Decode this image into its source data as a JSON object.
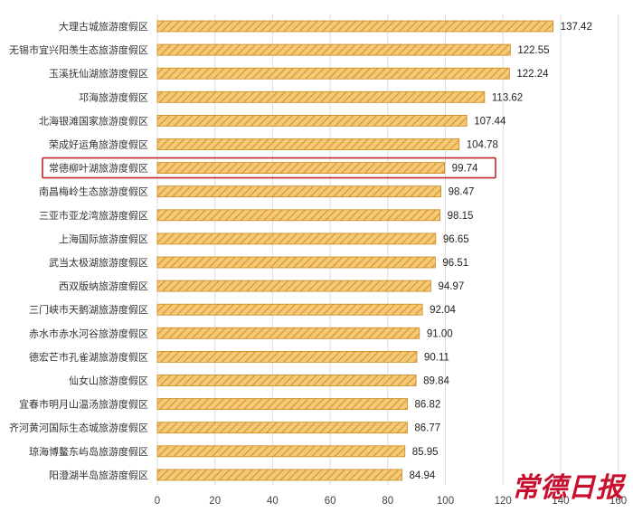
{
  "chart_data": {
    "type": "bar",
    "orientation": "horizontal",
    "categories": [
      "大理古城旅游度假区",
      "无锡市宜兴阳羡生态旅游度假区",
      "玉溪抚仙湖旅游度假区",
      "邛海旅游度假区",
      "北海银滩国家旅游度假区",
      "荣成好运角旅游度假区",
      "常德柳叶湖旅游度假区",
      "南昌梅岭生态旅游度假区",
      "三亚市亚龙湾旅游度假区",
      "上海国际旅游度假区",
      "武当太极湖旅游度假区",
      "西双版纳旅游度假区",
      "三门峡市天鹅湖旅游度假区",
      "赤水市赤水河谷旅游度假区",
      "德宏芒市孔雀湖旅游度假区",
      "仙女山旅游度假区",
      "宜春市明月山温汤旅游度假区",
      "齐河黄河国际生态城旅游度假区",
      "琼海博鳌东屿岛旅游度假区",
      "阳澄湖半岛旅游度假区"
    ],
    "values": [
      137.42,
      122.55,
      122.24,
      113.62,
      107.44,
      104.78,
      99.74,
      98.47,
      98.15,
      96.65,
      96.51,
      94.97,
      92.04,
      91.0,
      90.11,
      89.84,
      86.82,
      86.77,
      85.95,
      84.94
    ],
    "value_labels": [
      "137.42",
      "122.55",
      "122.24",
      "113.62",
      "107.44",
      "104.78",
      "99.74",
      "98.47",
      "98.15",
      "96.65",
      "96.51",
      "94.97",
      "92.04",
      "91.00",
      "90.11",
      "89.84",
      "86.82",
      "86.77",
      "85.95",
      "84.94"
    ],
    "x_ticks": [
      "0",
      "20",
      "40",
      "60",
      "80",
      "100",
      "120",
      "140",
      "160"
    ],
    "xlim": [
      0,
      160
    ],
    "grid": true,
    "highlighted_category": "常德柳叶湖旅游度假区",
    "colors": {
      "bar_fill": "#f5c97a",
      "bar_stripe": "#d99a2b",
      "bar_border": "#c98a1c",
      "highlight_box": "#c0282d",
      "grid": "#dcdcdc"
    }
  },
  "watermark": {
    "text": "常德日报",
    "color": "#c8102e"
  }
}
